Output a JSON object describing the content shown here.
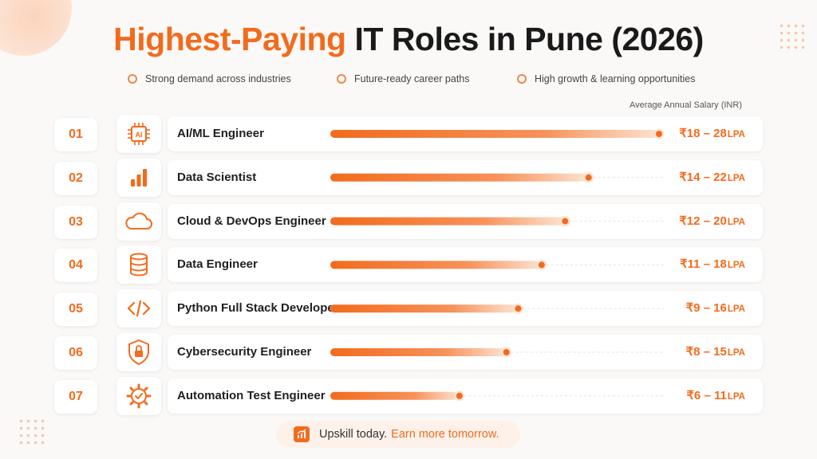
{
  "title": {
    "accent": "Highest-Paying",
    "rest": "IT Roles in Pune (2026)"
  },
  "benefits": [
    "Strong demand across industries",
    "Future-ready career paths",
    "High growth & learning opportunities"
  ],
  "axis_caption": "Average Annual Salary (INR)",
  "cta": {
    "lead": "Upskill today.",
    "emphasis": "Earn more tomorrow."
  },
  "colors": {
    "accent": "#f26b1d",
    "accent_light": "#fde3d2",
    "background": "#fbf9f7"
  },
  "chart_data": {
    "type": "bar",
    "orientation": "horizontal",
    "unit": "LPA",
    "categories": [
      "AI/ML Engineer",
      "Data Scientist",
      "Cloud & DevOps Engineer",
      "Data Engineer",
      "Python Full Stack Developer",
      "Cybersecurity Engineer",
      "Automation Test Engineer"
    ],
    "ranks": [
      "01",
      "02",
      "03",
      "04",
      "05",
      "06",
      "07"
    ],
    "icons": [
      "ai-chip-icon",
      "bar-chart-icon",
      "cloud-icon",
      "database-icon",
      "code-icon",
      "shield-lock-icon",
      "gear-check-icon"
    ],
    "salary_min": [
      18,
      14,
      12,
      11,
      9,
      8,
      6
    ],
    "salary_max": [
      28,
      22,
      20,
      18,
      16,
      15,
      11
    ],
    "value_labels": [
      "₹18 – 28",
      "₹14 – 22",
      "₹12 – 20",
      "₹11 – 18",
      "₹9 – 16",
      "₹8 – 15",
      "₹6 – 11"
    ],
    "grid": false,
    "legend": "none"
  }
}
